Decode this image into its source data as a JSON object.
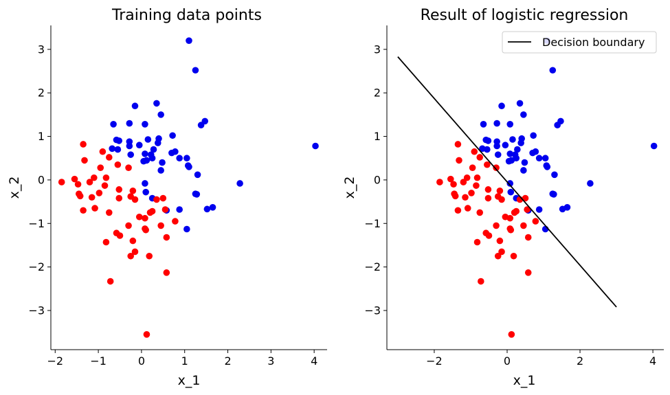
{
  "colors": {
    "class0": "#ff0000",
    "class1": "#0000ee",
    "boundary": "#000000"
  },
  "points": [
    {
      "x": 1.1,
      "y": 3.2,
      "c": 1
    },
    {
      "x": 1.25,
      "y": 2.52,
      "c": 1
    },
    {
      "x": 4.03,
      "y": 0.78,
      "c": 1
    },
    {
      "x": 2.28,
      "y": -0.08,
      "c": 1
    },
    {
      "x": 0.35,
      "y": 1.76,
      "c": 1
    },
    {
      "x": -0.15,
      "y": 1.7,
      "c": 1
    },
    {
      "x": 0.45,
      "y": 1.5,
      "c": 1
    },
    {
      "x": 1.47,
      "y": 1.35,
      "c": 1
    },
    {
      "x": 1.38,
      "y": 1.26,
      "c": 1
    },
    {
      "x": -0.65,
      "y": 1.28,
      "c": 1
    },
    {
      "x": -0.28,
      "y": 1.3,
      "c": 1
    },
    {
      "x": 0.08,
      "y": 1.28,
      "c": 1
    },
    {
      "x": 0.72,
      "y": 1.02,
      "c": 1
    },
    {
      "x": -0.58,
      "y": 0.92,
      "c": 1
    },
    {
      "x": -0.52,
      "y": 0.9,
      "c": 1
    },
    {
      "x": -0.28,
      "y": 0.88,
      "c": 1
    },
    {
      "x": 0.4,
      "y": 0.95,
      "c": 1
    },
    {
      "x": 0.15,
      "y": 0.93,
      "c": 1
    },
    {
      "x": -0.28,
      "y": 0.78,
      "c": 1
    },
    {
      "x": -0.05,
      "y": 0.8,
      "c": 1
    },
    {
      "x": 0.38,
      "y": 0.85,
      "c": 1
    },
    {
      "x": -0.68,
      "y": 0.72,
      "c": 1
    },
    {
      "x": -0.55,
      "y": 0.7,
      "c": 1
    },
    {
      "x": 0.28,
      "y": 0.7,
      "c": 1
    },
    {
      "x": 0.08,
      "y": 0.6,
      "c": 1
    },
    {
      "x": 0.78,
      "y": 0.65,
      "c": 1
    },
    {
      "x": 0.7,
      "y": 0.62,
      "c": 1
    },
    {
      "x": 0.22,
      "y": 0.58,
      "c": 1
    },
    {
      "x": -0.25,
      "y": 0.58,
      "c": 1
    },
    {
      "x": 0.25,
      "y": 0.5,
      "c": 1
    },
    {
      "x": 0.88,
      "y": 0.5,
      "c": 1
    },
    {
      "x": 1.05,
      "y": 0.5,
      "c": 1
    },
    {
      "x": 0.05,
      "y": 0.43,
      "c": 1
    },
    {
      "x": 0.12,
      "y": 0.45,
      "c": 1
    },
    {
      "x": 0.48,
      "y": 0.4,
      "c": 1
    },
    {
      "x": 1.08,
      "y": 0.33,
      "c": 1
    },
    {
      "x": 1.1,
      "y": 0.3,
      "c": 1
    },
    {
      "x": 0.45,
      "y": 0.22,
      "c": 1
    },
    {
      "x": 1.3,
      "y": 0.12,
      "c": 1
    },
    {
      "x": 0.08,
      "y": -0.08,
      "c": 1
    },
    {
      "x": 1.25,
      "y": -0.32,
      "c": 1
    },
    {
      "x": 1.28,
      "y": -0.33,
      "c": 1
    },
    {
      "x": 0.1,
      "y": -0.28,
      "c": 1
    },
    {
      "x": 0.25,
      "y": -0.42,
      "c": 1
    },
    {
      "x": 1.65,
      "y": -0.63,
      "c": 1
    },
    {
      "x": 1.52,
      "y": -0.67,
      "c": 1
    },
    {
      "x": 0.88,
      "y": -0.68,
      "c": 1
    },
    {
      "x": 0.58,
      "y": -0.7,
      "c": 1
    },
    {
      "x": 1.05,
      "y": -1.13,
      "c": 1
    },
    {
      "x": -1.35,
      "y": 0.82,
      "c": 0
    },
    {
      "x": -0.9,
      "y": 0.65,
      "c": 0
    },
    {
      "x": -0.75,
      "y": 0.52,
      "c": 0
    },
    {
      "x": -1.32,
      "y": 0.45,
      "c": 0
    },
    {
      "x": -0.55,
      "y": 0.35,
      "c": 0
    },
    {
      "x": -0.95,
      "y": 0.28,
      "c": 0
    },
    {
      "x": -0.3,
      "y": 0.28,
      "c": 0
    },
    {
      "x": -1.85,
      "y": -0.05,
      "c": 0
    },
    {
      "x": -1.55,
      "y": 0.02,
      "c": 0
    },
    {
      "x": -1.1,
      "y": 0.05,
      "c": 0
    },
    {
      "x": -0.82,
      "y": 0.05,
      "c": 0
    },
    {
      "x": -1.2,
      "y": -0.05,
      "c": 0
    },
    {
      "x": -1.47,
      "y": -0.1,
      "c": 0
    },
    {
      "x": -0.85,
      "y": -0.13,
      "c": 0
    },
    {
      "x": -0.52,
      "y": -0.22,
      "c": 0
    },
    {
      "x": -0.2,
      "y": -0.25,
      "c": 0
    },
    {
      "x": -1.45,
      "y": -0.32,
      "c": 0
    },
    {
      "x": -1.42,
      "y": -0.37,
      "c": 0
    },
    {
      "x": -0.98,
      "y": -0.3,
      "c": 0
    },
    {
      "x": -0.25,
      "y": -0.38,
      "c": 0
    },
    {
      "x": -1.15,
      "y": -0.4,
      "c": 0
    },
    {
      "x": -0.52,
      "y": -0.42,
      "c": 0
    },
    {
      "x": -0.15,
      "y": -0.45,
      "c": 0
    },
    {
      "x": 0.5,
      "y": -0.42,
      "c": 0
    },
    {
      "x": 0.35,
      "y": -0.45,
      "c": 0
    },
    {
      "x": -1.08,
      "y": -0.65,
      "c": 0
    },
    {
      "x": -1.35,
      "y": -0.7,
      "c": 0
    },
    {
      "x": -0.75,
      "y": -0.75,
      "c": 0
    },
    {
      "x": 0.25,
      "y": -0.72,
      "c": 0
    },
    {
      "x": 0.2,
      "y": -0.75,
      "c": 0
    },
    {
      "x": 0.55,
      "y": -0.68,
      "c": 0
    },
    {
      "x": -0.05,
      "y": -0.85,
      "c": 0
    },
    {
      "x": 0.08,
      "y": -0.88,
      "c": 0
    },
    {
      "x": 0.78,
      "y": -0.95,
      "c": 0
    },
    {
      "x": -0.3,
      "y": -1.05,
      "c": 0
    },
    {
      "x": 0.45,
      "y": -1.05,
      "c": 0
    },
    {
      "x": 0.08,
      "y": -1.12,
      "c": 0
    },
    {
      "x": 0.1,
      "y": -1.15,
      "c": 0
    },
    {
      "x": -0.58,
      "y": -1.22,
      "c": 0
    },
    {
      "x": -0.5,
      "y": -1.28,
      "c": 0
    },
    {
      "x": 0.58,
      "y": -1.32,
      "c": 0
    },
    {
      "x": -0.2,
      "y": -1.4,
      "c": 0
    },
    {
      "x": -0.82,
      "y": -1.43,
      "c": 0
    },
    {
      "x": -0.15,
      "y": -1.65,
      "c": 0
    },
    {
      "x": -0.25,
      "y": -1.75,
      "c": 0
    },
    {
      "x": 0.18,
      "y": -1.75,
      "c": 0
    },
    {
      "x": 0.58,
      "y": -2.13,
      "c": 0
    },
    {
      "x": -0.72,
      "y": -2.33,
      "c": 0
    },
    {
      "x": 0.12,
      "y": -3.55,
      "c": 0
    }
  ],
  "chart_data": [
    {
      "type": "scatter",
      "title": "Training data points",
      "xlabel": "x_1",
      "ylabel": "x_2",
      "xlim": [
        -2.1,
        4.3
      ],
      "ylim": [
        -3.9,
        3.55
      ],
      "xticks": [
        -2,
        -1,
        0,
        1,
        2,
        3,
        4
      ],
      "yticks": [
        -3,
        -2,
        -1,
        0,
        1,
        2,
        3
      ],
      "grid": false
    },
    {
      "type": "scatter",
      "title": "Result of logistic regression",
      "xlabel": "x_1",
      "ylabel": "x_2",
      "xlim": [
        -3.3,
        4.3
      ],
      "ylim": [
        -3.9,
        3.55
      ],
      "xticks": [
        -2,
        0,
        2,
        4
      ],
      "yticks": [
        -3,
        -2,
        -1,
        0,
        1,
        2,
        3
      ],
      "grid": false,
      "legend": {
        "placement": "top-right",
        "entries": [
          "Decision boundary"
        ]
      },
      "decision_boundary": {
        "x": [
          -3.0,
          3.0
        ],
        "y": [
          2.83,
          -2.92
        ]
      }
    }
  ]
}
